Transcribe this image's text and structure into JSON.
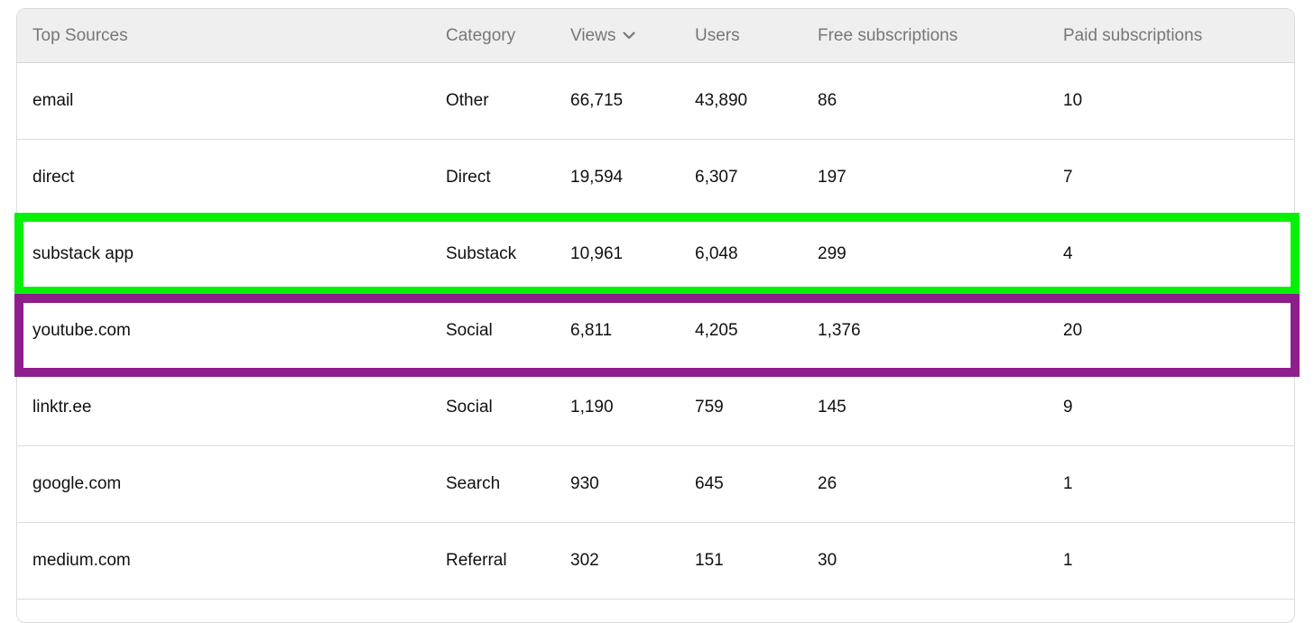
{
  "table": {
    "headers": {
      "source": "Top Sources",
      "category": "Category",
      "views": "Views",
      "users": "Users",
      "free": "Free subscriptions",
      "paid": "Paid subscriptions"
    },
    "sort_icon": "chevron-down-icon",
    "rows": [
      {
        "source": "email",
        "category": "Other",
        "views": "66,715",
        "users": "43,890",
        "free": "86",
        "paid": "10"
      },
      {
        "source": "direct",
        "category": "Direct",
        "views": "19,594",
        "users": "6,307",
        "free": "197",
        "paid": "7"
      },
      {
        "source": "substack app",
        "category": "Substack",
        "views": "10,961",
        "users": "6,048",
        "free": "299",
        "paid": "4"
      },
      {
        "source": "youtube.com",
        "category": "Social",
        "views": "6,811",
        "users": "4,205",
        "free": "1,376",
        "paid": "20"
      },
      {
        "source": "linktr.ee",
        "category": "Social",
        "views": "1,190",
        "users": "759",
        "free": "145",
        "paid": "9"
      },
      {
        "source": "google.com",
        "category": "Search",
        "views": "930",
        "users": "645",
        "free": "26",
        "paid": "1"
      },
      {
        "source": "medium.com",
        "category": "Referral",
        "views": "302",
        "users": "151",
        "free": "30",
        "paid": "1"
      }
    ]
  },
  "highlights": {
    "green_color": "#07f107",
    "purple_color": "#8e1e8c"
  }
}
